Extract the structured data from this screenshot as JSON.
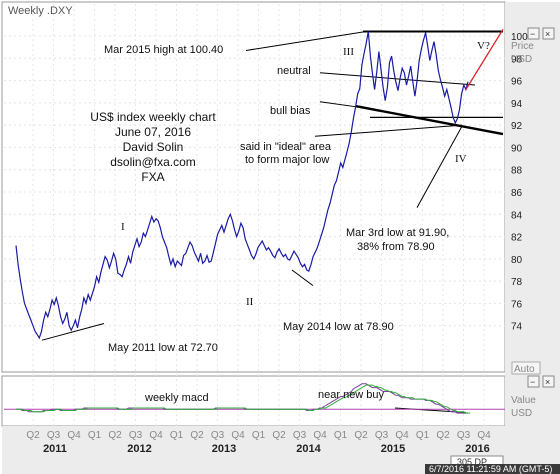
{
  "window": {
    "title": "Weekly .DXY"
  },
  "panel": {
    "price_label": "Price",
    "price_unit": "USD",
    "value_label": "Value",
    "value_unit": "USD",
    "auto_label": "Auto",
    "resolution_label": "305 DP",
    "timestamp": "6/7/2016 11:21:59 AM (GMT-5)"
  },
  "chart_data": {
    "type": "line",
    "title": "",
    "ylim": [
      72,
      100
    ],
    "yticks": [
      74,
      76,
      78,
      80,
      82,
      84,
      86,
      88,
      90,
      92,
      94,
      96,
      98,
      100
    ],
    "quarter_labels": [
      "Q2",
      "Q3",
      "Q4",
      "Q1",
      "Q2",
      "Q3",
      "Q4",
      "Q1",
      "Q2",
      "Q3",
      "Q4",
      "Q1",
      "Q2",
      "Q3",
      "Q4",
      "Q1",
      "Q2",
      "Q3",
      "Q4",
      "Q1",
      "Q2",
      "Q3",
      "Q4"
    ],
    "years": [
      "2011",
      "2012",
      "2013",
      "2014",
      "2015",
      "2016"
    ],
    "text_block": [
      "US$ index weekly chart",
      "June 07, 2016",
      "David Solin",
      "dsolin@fxa.com",
      "FXA"
    ],
    "series": [
      {
        "values": [
          81.2,
          79.5,
          78.2,
          77.0,
          76.0,
          75.5,
          75.0,
          74.5,
          74.0,
          73.5,
          73.2,
          72.9,
          73.5,
          74.5,
          75.2,
          74.8,
          75.5,
          76.3,
          75.9,
          76.5,
          75.8,
          74.8,
          74.2,
          74.6,
          75.2,
          74.0,
          73.6,
          74.0,
          74.5,
          73.8,
          74.8,
          75.5,
          76.5,
          76.0,
          76.8,
          76.3,
          76.9,
          77.5,
          78.4,
          77.9,
          78.8,
          79.5,
          80.2,
          79.9,
          79.2,
          79.8,
          80.5,
          80.0,
          78.7,
          78.6,
          78.4,
          79.0,
          79.5,
          80.2,
          79.6,
          80.6,
          81.2,
          81.8,
          81.1,
          81.5,
          82.3,
          82.0,
          82.6,
          83.2,
          83.8,
          83.3,
          83.6,
          83.4,
          82.8,
          82.0,
          81.5,
          81.0,
          80.2,
          79.5,
          80.0,
          79.3,
          79.8,
          79.6,
          79.4,
          80.3,
          80.5,
          81.0,
          81.5,
          81.2,
          80.6,
          80.2,
          79.8,
          80.5,
          79.6,
          79.8,
          80.3,
          79.7,
          79.8,
          80.6,
          81.4,
          82.2,
          82.6,
          83.0,
          82.4,
          83.0,
          83.6,
          84.0,
          83.4,
          82.6,
          82.0,
          82.5,
          83.2,
          82.8,
          81.8,
          81.3,
          80.8,
          80.3,
          80.0,
          80.4,
          81.0,
          81.3,
          81.6,
          81.2,
          80.8,
          81.0,
          80.7,
          80.3,
          80.1,
          80.6,
          80.9,
          80.5,
          80.2,
          80.4,
          80.0,
          79.9,
          80.3,
          80.7,
          80.4,
          80.1,
          79.6,
          79.3,
          79.5,
          79.0,
          78.9,
          79.5,
          80.2,
          80.6,
          81.0,
          81.6,
          82.2,
          82.8,
          83.6,
          84.4,
          85.0,
          85.8,
          86.6,
          87.0,
          87.8,
          88.6,
          88.2,
          88.9,
          89.6,
          90.4,
          91.4,
          92.6,
          93.6,
          94.8,
          95.3,
          97.4,
          98.4,
          99.3,
          100.4,
          98.2,
          96.6,
          95.2,
          96.8,
          98.6,
          97.0,
          95.4,
          94.2,
          95.4,
          97.6,
          98.2,
          96.9,
          95.9,
          95.1,
          96.2,
          97.1,
          96.7,
          95.6,
          96.4,
          97.3,
          95.9,
          94.6,
          96.0,
          97.8,
          98.8,
          99.6,
          100.3,
          99.1,
          97.8,
          98.7,
          99.5,
          98.3,
          96.9,
          96.1,
          95.4,
          94.6,
          95.2,
          94.4,
          93.6,
          92.7,
          92.2,
          92.6,
          93.4,
          94.8,
          95.6,
          95.2,
          95.9
        ]
      }
    ],
    "macd": {
      "values": [
        0.0,
        0.0,
        0.0,
        -0.1,
        -0.1,
        -0.1,
        -0.2,
        -0.2,
        -0.2,
        -0.2,
        -0.2,
        -0.2,
        -0.2,
        -0.1,
        -0.1,
        -0.1,
        -0.1,
        0.0,
        0.0,
        0.0,
        0.0,
        -0.1,
        -0.1,
        -0.1,
        -0.1,
        -0.1,
        -0.1,
        -0.1,
        0.0,
        0.0,
        0.0,
        0.0,
        0.1,
        0.1,
        0.1,
        0.1,
        0.1,
        0.1,
        0.1,
        0.1,
        0.1,
        0.1,
        0.1,
        0.1,
        0.1,
        0.1,
        0.1,
        0.1,
        0.0,
        0.0,
        0.0,
        0.0,
        0.0,
        0.1,
        0.1,
        0.1,
        0.1,
        0.1,
        0.1,
        0.1,
        0.1,
        0.1,
        0.1,
        0.1,
        0.1,
        0.1,
        0.1,
        0.1,
        0.1,
        0.1,
        0.0,
        0.0,
        0.0,
        0.0,
        0.0,
        0.0,
        0.0,
        0.0,
        0.0,
        0.0,
        0.0,
        0.0,
        0.0,
        0.0,
        0.0,
        0.0,
        0.0,
        0.0,
        0.0,
        0.0,
        0.0,
        0.0,
        0.0,
        0.0,
        0.1,
        0.1,
        0.1,
        0.1,
        0.1,
        0.1,
        0.1,
        0.1,
        0.1,
        0.1,
        0.1,
        0.1,
        0.1,
        0.1,
        0.0,
        0.0,
        0.0,
        0.0,
        0.0,
        0.0,
        0.0,
        0.0,
        0.0,
        0.0,
        0.0,
        0.0,
        0.0,
        0.0,
        0.0,
        0.0,
        0.0,
        0.0,
        0.0,
        0.0,
        0.0,
        0.0,
        0.0,
        0.0,
        0.0,
        0.0,
        0.0,
        0.0,
        0.0,
        -0.1,
        -0.1,
        -0.1,
        0.0,
        0.0,
        0.0,
        0.1,
        0.1,
        0.2,
        0.3,
        0.4,
        0.5,
        0.6,
        0.7,
        0.8,
        0.9,
        1.0,
        1.0,
        1.1,
        1.2,
        1.3,
        1.4,
        1.6,
        1.7,
        1.8,
        1.9,
        2.0,
        2.0,
        2.0,
        1.9,
        1.8,
        1.7,
        1.7,
        1.7,
        1.6,
        1.5,
        1.4,
        1.4,
        1.4,
        1.4,
        1.3,
        1.2,
        1.1,
        1.1,
        1.0,
        0.9,
        0.9,
        0.9,
        0.9,
        0.8,
        0.8,
        0.8,
        0.8,
        0.8,
        0.8,
        0.8,
        0.7,
        0.7,
        0.7,
        0.6,
        0.5,
        0.4,
        0.4,
        0.3,
        0.2,
        0.1,
        0.0,
        -0.1,
        -0.2,
        -0.2,
        -0.2,
        -0.3,
        -0.3,
        -0.3,
        -0.3,
        -0.3,
        -0.3
      ],
      "signal": [
        0.0,
        0.0,
        0.0,
        0.0,
        -0.1,
        -0.1,
        -0.1,
        -0.1,
        -0.2,
        -0.2,
        -0.2,
        -0.2,
        -0.2,
        -0.2,
        -0.1,
        -0.1,
        -0.1,
        -0.1,
        -0.1,
        0.0,
        0.0,
        0.0,
        -0.1,
        -0.1,
        -0.1,
        -0.1,
        -0.1,
        -0.1,
        -0.1,
        0.0,
        0.0,
        0.0,
        0.0,
        0.0,
        0.1,
        0.1,
        0.1,
        0.1,
        0.1,
        0.1,
        0.1,
        0.1,
        0.1,
        0.1,
        0.1,
        0.1,
        0.1,
        0.1,
        0.1,
        0.0,
        0.0,
        0.0,
        0.0,
        0.0,
        0.0,
        0.1,
        0.1,
        0.1,
        0.1,
        0.1,
        0.1,
        0.1,
        0.1,
        0.1,
        0.1,
        0.1,
        0.1,
        0.1,
        0.1,
        0.1,
        0.1,
        0.0,
        0.0,
        0.0,
        0.0,
        0.0,
        0.0,
        0.0,
        0.0,
        0.0,
        0.0,
        0.0,
        0.0,
        0.0,
        0.0,
        0.0,
        0.0,
        0.0,
        0.0,
        0.0,
        0.0,
        0.0,
        0.0,
        0.0,
        0.0,
        0.1,
        0.1,
        0.1,
        0.1,
        0.1,
        0.1,
        0.1,
        0.1,
        0.1,
        0.1,
        0.1,
        0.1,
        0.1,
        0.1,
        0.0,
        0.0,
        0.0,
        0.0,
        0.0,
        0.0,
        0.0,
        0.0,
        0.0,
        0.0,
        0.0,
        0.0,
        0.0,
        0.0,
        0.0,
        0.0,
        0.0,
        0.0,
        0.0,
        0.0,
        0.0,
        0.0,
        0.0,
        0.0,
        0.0,
        0.0,
        0.0,
        0.0,
        0.0,
        -0.1,
        -0.1,
        -0.1,
        0.0,
        0.0,
        0.0,
        0.1,
        0.1,
        0.1,
        0.2,
        0.3,
        0.4,
        0.5,
        0.6,
        0.7,
        0.8,
        0.9,
        0.9,
        1.0,
        1.1,
        1.2,
        1.3,
        1.4,
        1.5,
        1.6,
        1.7,
        1.8,
        1.9,
        1.9,
        1.9,
        1.9,
        1.8,
        1.8,
        1.7,
        1.7,
        1.6,
        1.5,
        1.5,
        1.4,
        1.4,
        1.3,
        1.3,
        1.2,
        1.1,
        1.0,
        1.0,
        0.9,
        0.9,
        0.9,
        0.9,
        0.8,
        0.8,
        0.8,
        0.8,
        0.8,
        0.8,
        0.7,
        0.7,
        0.7,
        0.6,
        0.6,
        0.5,
        0.4,
        0.3,
        0.2,
        0.2,
        0.1,
        0.0,
        -0.1,
        -0.1,
        -0.2,
        -0.2,
        -0.2,
        -0.2,
        -0.3,
        -0.3,
        -0.3
      ]
    },
    "annotations": {
      "mar2015_high": "Mar 2015 high at 100.40",
      "neutral": "neutral",
      "bull_bias": "bull bias",
      "ideal_area": "said in \"ideal\" area\nto form major low",
      "mar3_low": "Mar 3rd low at 91.90,\n38% from 78.90",
      "may2014_low": "May 2014 low at 78.90",
      "may2011_low": "May 2011 low at 72.70",
      "wave_I": "I",
      "wave_II": "II",
      "wave_III": "III",
      "wave_IV": "IV",
      "wave_V": "V?",
      "weekly_macd": "weekly macd",
      "near_new_buy": "near new buy"
    },
    "colors": {
      "price": "#1a1aa6",
      "macd": "#7a3fa0",
      "signal": "#2fae3a",
      "projection": "#e0202a",
      "zero_line": "#b040b0",
      "panel_bg": "#ececec"
    }
  }
}
